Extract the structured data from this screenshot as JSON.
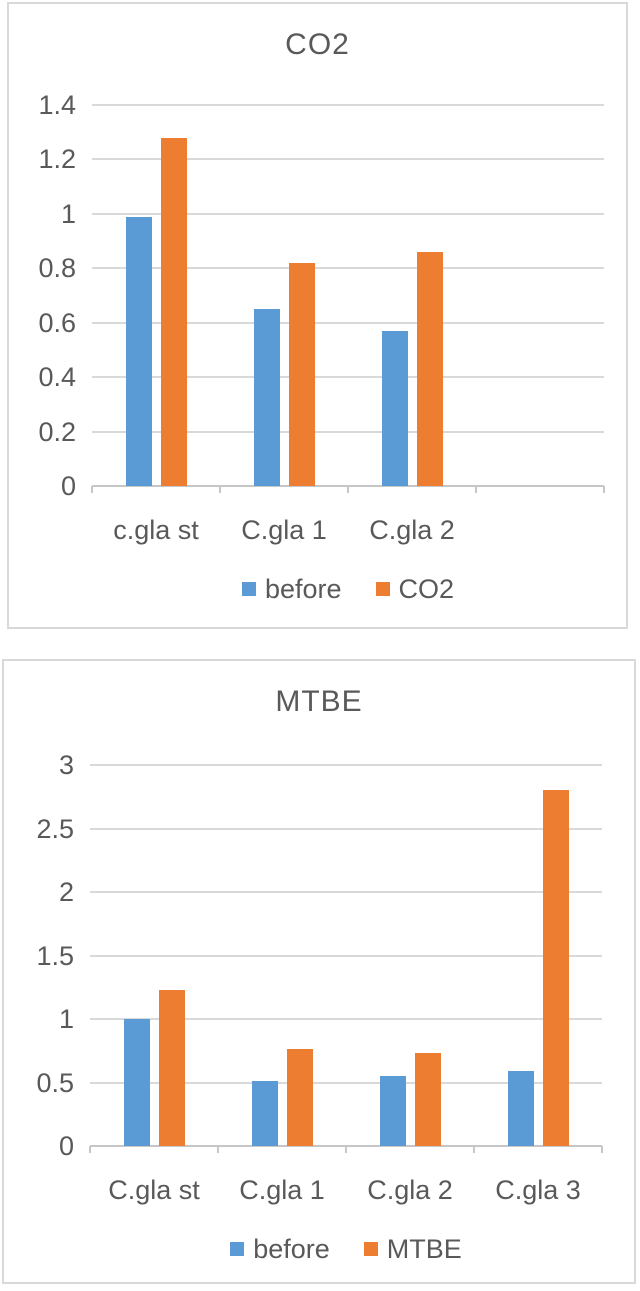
{
  "colors": {
    "series_blue": "#5B9BD5",
    "series_orange": "#ED7D31",
    "gridline": "#D9D9D9",
    "axis_text": "#595959",
    "panel_border": "#D9D9D9",
    "background": "#FFFFFF"
  },
  "chart_data": [
    {
      "type": "bar",
      "title": "CO2",
      "categories": [
        "c.gla st",
        "C.gla 1",
        "C.gla 2"
      ],
      "series": [
        {
          "name": "before",
          "color": "#5B9BD5",
          "values": [
            0.99,
            0.65,
            0.57
          ]
        },
        {
          "name": "CO2",
          "color": "#ED7D31",
          "values": [
            1.28,
            0.82,
            0.86
          ]
        }
      ],
      "xlabel": "",
      "ylabel": "",
      "ylim": [
        0,
        1.4
      ],
      "y_axis": {
        "min": 0,
        "max": 1.4,
        "step": 0.2,
        "tick_labels": [
          "0",
          "0.2",
          "0.4",
          "0.6",
          "0.8",
          "1",
          "1.2",
          "1.4"
        ]
      },
      "grid": "horizontal",
      "legend_position": "bottom",
      "legend": [
        "before",
        "CO2"
      ]
    },
    {
      "type": "bar",
      "title": "MTBE",
      "categories": [
        "C.gla st",
        "C.gla 1",
        "C.gla 2",
        "C.gla 3"
      ],
      "series": [
        {
          "name": "before",
          "color": "#5B9BD5",
          "values": [
            1.0,
            0.51,
            0.55,
            0.59
          ]
        },
        {
          "name": "MTBE",
          "color": "#ED7D31",
          "values": [
            1.23,
            0.76,
            0.73,
            2.8
          ]
        }
      ],
      "xlabel": "",
      "ylabel": "",
      "ylim": [
        0,
        3
      ],
      "y_axis": {
        "min": 0,
        "max": 3,
        "step": 0.5,
        "tick_labels": [
          "0",
          "0.5",
          "1",
          "1.5",
          "2",
          "2.5",
          "3"
        ]
      },
      "grid": "horizontal",
      "legend_position": "bottom",
      "legend": [
        "before",
        "MTBE"
      ]
    }
  ]
}
